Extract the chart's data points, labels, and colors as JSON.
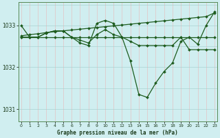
{
  "title": "Graphe pression niveau de la mer (hPa)",
  "background_color": "#d0eef0",
  "line_color": "#1e5c1e",
  "xlim": [
    -0.3,
    23.3
  ],
  "ylim": [
    1030.7,
    1033.55
  ],
  "yticks": [
    1031,
    1032,
    1033
  ],
  "xticks": [
    0,
    1,
    2,
    3,
    4,
    5,
    6,
    7,
    8,
    9,
    10,
    11,
    12,
    13,
    14,
    15,
    16,
    17,
    18,
    19,
    20,
    21,
    22,
    23
  ],
  "series": [
    {
      "x": [
        0,
        1,
        2,
        3,
        4,
        5,
        6,
        7,
        8,
        9,
        10,
        11,
        12,
        13,
        14,
        15,
        16,
        17,
        18,
        19,
        20,
        21,
        22,
        23
      ],
      "y": [
        1032.75,
        1032.78,
        1032.8,
        1032.83,
        1032.85,
        1032.87,
        1032.89,
        1032.91,
        1032.93,
        1032.95,
        1032.97,
        1032.99,
        1033.01,
        1033.03,
        1033.05,
        1033.07,
        1033.09,
        1033.11,
        1033.13,
        1033.15,
        1033.17,
        1033.19,
        1033.21,
        1033.3
      ]
    },
    {
      "x": [
        0,
        1,
        2,
        3,
        4,
        5,
        6,
        7,
        8,
        9,
        10,
        11,
        12,
        13,
        14,
        15,
        16,
        17,
        18,
        19,
        20,
        21,
        22,
        23
      ],
      "y": [
        1032.72,
        1032.72,
        1032.72,
        1032.72,
        1032.72,
        1032.72,
        1032.72,
        1032.72,
        1032.72,
        1032.72,
        1032.72,
        1032.72,
        1032.72,
        1032.72,
        1032.72,
        1032.72,
        1032.72,
        1032.72,
        1032.72,
        1032.72,
        1032.72,
        1032.72,
        1032.72,
        1032.72
      ]
    },
    {
      "x": [
        0,
        1,
        2,
        3,
        4,
        5,
        6,
        7,
        8,
        9,
        10,
        11,
        12,
        13,
        14,
        15,
        16,
        17,
        18,
        19,
        20,
        21,
        22,
        23
      ],
      "y": [
        1033.0,
        1032.72,
        1032.72,
        1032.82,
        1032.87,
        1032.87,
        1032.72,
        1032.58,
        1032.52,
        1033.05,
        1033.12,
        1033.05,
        1032.72,
        1032.15,
        1031.35,
        1031.28,
        1031.62,
        1031.9,
        1032.1,
        1032.62,
        1032.72,
        1032.55,
        1033.0,
        1033.32
      ]
    },
    {
      "x": [
        0,
        1,
        2,
        3,
        4,
        5,
        6,
        7,
        8,
        9,
        10,
        11,
        12,
        13,
        14,
        15,
        16,
        17,
        18,
        19,
        20,
        21,
        22,
        23
      ],
      "y": [
        1032.72,
        1032.72,
        1032.72,
        1032.82,
        1032.87,
        1032.87,
        1032.72,
        1032.65,
        1032.58,
        1032.78,
        1032.9,
        1032.78,
        1032.72,
        1032.62,
        1032.52,
        1032.52,
        1032.52,
        1032.52,
        1032.52,
        1032.72,
        1032.42,
        1032.42,
        1032.42,
        1032.42
      ]
    }
  ]
}
